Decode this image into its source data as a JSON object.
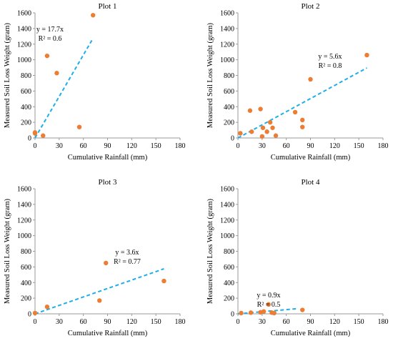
{
  "chart_data": [
    {
      "type": "scatter",
      "title": "Plot 1",
      "xlabel": "Cumulative Rainfall (mm)",
      "ylabel": "Measured Soil Loss Weight (gram)",
      "xlim": [
        0,
        180
      ],
      "ylim": [
        0,
        1600
      ],
      "xticks": [
        0,
        30,
        60,
        90,
        120,
        150,
        180
      ],
      "yticks": [
        0,
        200,
        400,
        600,
        800,
        1000,
        1200,
        1400,
        1600
      ],
      "points": [
        {
          "x": 0,
          "y": 60
        },
        {
          "x": 0,
          "y": 70
        },
        {
          "x": 10,
          "y": 30
        },
        {
          "x": 15,
          "y": 1050
        },
        {
          "x": 27,
          "y": 830
        },
        {
          "x": 55,
          "y": 140
        },
        {
          "x": 72,
          "y": 1570
        }
      ],
      "trendline": {
        "slope": 17.7,
        "x_range": [
          0,
          72
        ]
      },
      "equation": "y = 17.7x",
      "r2": "R² = 0.6"
    },
    {
      "type": "scatter",
      "title": "Plot 2",
      "xlabel": "Cumulative Rainfall (mm)",
      "ylabel": "Measured Soil Loss Weight (gram)",
      "xlim": [
        0,
        180
      ],
      "ylim": [
        0,
        1600
      ],
      "xticks": [
        0,
        30,
        60,
        90,
        120,
        150,
        180
      ],
      "yticks": [
        0,
        200,
        400,
        600,
        800,
        1000,
        1200,
        1400,
        1600
      ],
      "points": [
        {
          "x": 3,
          "y": 60
        },
        {
          "x": 15,
          "y": 350
        },
        {
          "x": 17,
          "y": 80
        },
        {
          "x": 28,
          "y": 370
        },
        {
          "x": 30,
          "y": 20
        },
        {
          "x": 31,
          "y": 130
        },
        {
          "x": 36,
          "y": 80
        },
        {
          "x": 40,
          "y": 200
        },
        {
          "x": 43,
          "y": 130
        },
        {
          "x": 47,
          "y": 30
        },
        {
          "x": 71,
          "y": 330
        },
        {
          "x": 80,
          "y": 230
        },
        {
          "x": 80,
          "y": 140
        },
        {
          "x": 90,
          "y": 750
        },
        {
          "x": 160,
          "y": 1060
        }
      ],
      "trendline": {
        "slope": 5.6,
        "x_range": [
          0,
          160
        ]
      },
      "equation": "y = 5.6x",
      "r2": "R² = 0.8"
    },
    {
      "type": "scatter",
      "title": "Plot 3",
      "xlabel": "Cumulative Rainfall (mm)",
      "ylabel": "Measured Soil Loss Weight (gram)",
      "xlim": [
        0,
        180
      ],
      "ylim": [
        0,
        1600
      ],
      "xticks": [
        0,
        30,
        60,
        90,
        120,
        150,
        180
      ],
      "yticks": [
        0,
        200,
        400,
        600,
        800,
        1000,
        1200,
        1400,
        1600
      ],
      "points": [
        {
          "x": 0,
          "y": 10
        },
        {
          "x": 15,
          "y": 90
        },
        {
          "x": 80,
          "y": 170
        },
        {
          "x": 88,
          "y": 650
        },
        {
          "x": 160,
          "y": 420
        }
      ],
      "trendline": {
        "slope": 3.6,
        "x_range": [
          0,
          160
        ]
      },
      "equation": "y = 3.6x",
      "r2": "R² = 0.77"
    },
    {
      "type": "scatter",
      "title": "Plot 4",
      "xlabel": "Cumulative Rainfall (mm)",
      "ylabel": "Measured Soil Loss Weight (gram)",
      "xlim": [
        0,
        180
      ],
      "ylim": [
        0,
        1600
      ],
      "xticks": [
        0,
        30,
        60,
        90,
        120,
        150,
        180
      ],
      "yticks": [
        0,
        200,
        400,
        600,
        800,
        1000,
        1200,
        1400,
        1600
      ],
      "points": [
        {
          "x": 4,
          "y": 10
        },
        {
          "x": 16,
          "y": 15
        },
        {
          "x": 28,
          "y": 20
        },
        {
          "x": 32,
          "y": 30
        },
        {
          "x": 38,
          "y": 120
        },
        {
          "x": 42,
          "y": 15
        },
        {
          "x": 45,
          "y": 10
        },
        {
          "x": 80,
          "y": 50
        }
      ],
      "trendline": {
        "slope": 0.9,
        "x_range": [
          0,
          75
        ]
      },
      "equation": "y = 0.9x",
      "r2": "R² = 0.5"
    }
  ]
}
